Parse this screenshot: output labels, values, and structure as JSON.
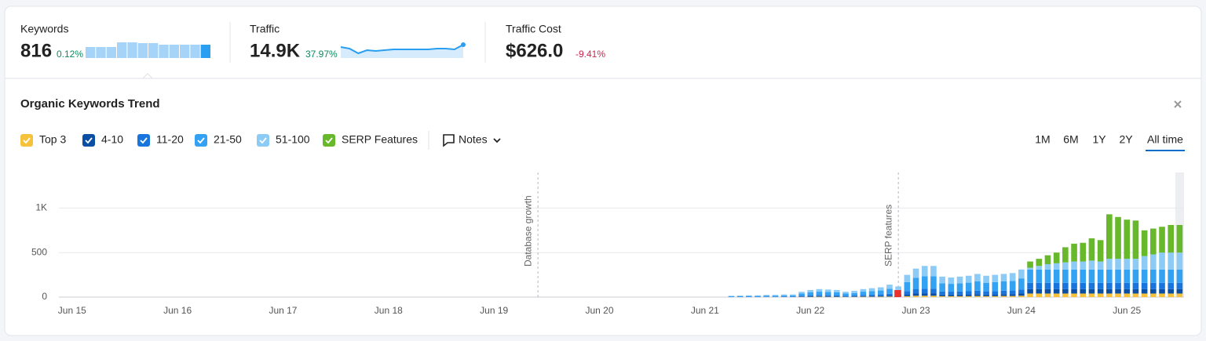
{
  "metrics": [
    {
      "label": "Keywords",
      "value": "816",
      "change": "0.12%",
      "change_color": "#0f8a5f",
      "sparkline": {
        "type": "bar",
        "values": [
          14,
          14,
          14,
          20,
          20,
          19,
          19,
          17,
          17,
          17,
          17,
          17
        ],
        "ylim": [
          0,
          20
        ],
        "color": "#a6d4f8",
        "highlight_color": "#2a9ef0"
      }
    },
    {
      "label": "Traffic",
      "value": "14.9K",
      "change": "37.97%",
      "change_color": "#0f8a5f",
      "sparkline": {
        "type": "line",
        "values": [
          14,
          12,
          6,
          10,
          9,
          10,
          11,
          11,
          11,
          11,
          11,
          12,
          12,
          11,
          17
        ],
        "ylim": [
          0,
          20
        ],
        "color": "#2a9ef0",
        "fill": "#d6ebfb"
      }
    },
    {
      "label": "Traffic Cost",
      "value": "$626.0",
      "change": "-9.41%",
      "change_color": "#d0224a"
    }
  ],
  "controls": {
    "notes": "Notes",
    "ranges": [
      "1M",
      "6M",
      "1Y",
      "2Y",
      "All time"
    ],
    "active_range": 4
  },
  "chart_data": {
    "type": "bar",
    "stacked": true,
    "title": "Organic Keywords Trend",
    "categories": [
      null,
      "Jun 15",
      null,
      null,
      null,
      null,
      null,
      null,
      null,
      null,
      null,
      null,
      null,
      "Jun 16",
      null,
      null,
      null,
      null,
      null,
      null,
      null,
      null,
      null,
      null,
      null,
      "Jun 17",
      null,
      null,
      null,
      null,
      null,
      null,
      null,
      null,
      null,
      null,
      null,
      "Jun 18",
      null,
      null,
      null,
      null,
      null,
      null,
      null,
      null,
      null,
      null,
      null,
      "Jun 19",
      null,
      null,
      null,
      null,
      null,
      null,
      null,
      null,
      null,
      null,
      null,
      "Jun 20",
      null,
      null,
      null,
      null,
      null,
      null,
      null,
      null,
      null,
      null,
      null,
      "Jun 21",
      null,
      null,
      null,
      null,
      null,
      null,
      null,
      null,
      null,
      null,
      null,
      "Jun 22",
      null,
      null,
      null,
      null,
      null,
      null,
      null,
      null,
      null,
      null,
      null,
      "Jun 23",
      null,
      null,
      null,
      null,
      null,
      null,
      null,
      null,
      null,
      null,
      null,
      "Jun 24",
      null,
      null,
      null,
      null,
      null,
      null,
      null,
      null,
      null,
      null,
      null,
      "Jun 25",
      null,
      null,
      null,
      null,
      null,
      null
    ],
    "series": [
      {
        "name": "Top 3",
        "color": "#f7c23b",
        "values": [
          0,
          0,
          0,
          0,
          0,
          0,
          0,
          0,
          0,
          0,
          0,
          0,
          0,
          0,
          0,
          0,
          0,
          0,
          0,
          0,
          0,
          0,
          0,
          0,
          0,
          0,
          0,
          0,
          0,
          0,
          0,
          0,
          0,
          0,
          0,
          0,
          0,
          0,
          0,
          0,
          0,
          0,
          0,
          0,
          0,
          0,
          0,
          0,
          0,
          0,
          0,
          0,
          0,
          0,
          0,
          0,
          0,
          0,
          0,
          0,
          0,
          0,
          0,
          0,
          0,
          0,
          0,
          0,
          0,
          0,
          0,
          0,
          0,
          0,
          0,
          0,
          0,
          0,
          0,
          0,
          0,
          0,
          0,
          0,
          2,
          3,
          4,
          3,
          3,
          2,
          3,
          4,
          4,
          5,
          6,
          5,
          10,
          15,
          15,
          15,
          10,
          10,
          10,
          10,
          12,
          10,
          10,
          12,
          12,
          15,
          40,
          40,
          40,
          40,
          40,
          40,
          40,
          40,
          40,
          40,
          40,
          40,
          40,
          40,
          40,
          40,
          40,
          40
        ]
      },
      {
        "name": "4-10",
        "color": "#0b4fa4",
        "values": [
          0,
          0,
          0,
          0,
          0,
          0,
          0,
          0,
          0,
          0,
          0,
          0,
          0,
          0,
          0,
          0,
          0,
          0,
          0,
          0,
          0,
          0,
          0,
          0,
          0,
          0,
          0,
          0,
          0,
          0,
          0,
          0,
          0,
          0,
          0,
          0,
          0,
          0,
          0,
          0,
          0,
          0,
          0,
          0,
          0,
          0,
          0,
          0,
          0,
          0,
          0,
          0,
          0,
          0,
          0,
          0,
          0,
          0,
          0,
          0,
          0,
          0,
          0,
          0,
          0,
          0,
          0,
          0,
          0,
          0,
          0,
          0,
          0,
          0,
          0,
          0,
          1,
          1,
          1,
          1,
          2,
          2,
          2,
          2,
          5,
          6,
          7,
          7,
          6,
          5,
          5,
          7,
          8,
          9,
          11,
          10,
          20,
          25,
          28,
          28,
          18,
          18,
          18,
          20,
          21,
          19,
          20,
          21,
          22,
          25,
          50,
          50,
          50,
          50,
          50,
          50,
          50,
          50,
          50,
          50,
          50,
          50,
          50,
          50,
          50,
          50,
          50,
          50
        ]
      },
      {
        "name": "11-20",
        "color": "#1875dd",
        "values": [
          0,
          0,
          0,
          0,
          0,
          0,
          0,
          0,
          0,
          0,
          0,
          0,
          0,
          0,
          0,
          0,
          0,
          0,
          0,
          0,
          0,
          0,
          0,
          0,
          0,
          0,
          0,
          0,
          0,
          0,
          0,
          0,
          0,
          0,
          0,
          0,
          0,
          0,
          0,
          0,
          0,
          0,
          0,
          0,
          0,
          0,
          0,
          0,
          0,
          0,
          0,
          0,
          0,
          0,
          0,
          0,
          0,
          0,
          0,
          0,
          0,
          0,
          0,
          0,
          0,
          0,
          0,
          0,
          0,
          0,
          0,
          0,
          0,
          0,
          0,
          0,
          2,
          3,
          3,
          3,
          4,
          4,
          5,
          5,
          9,
          12,
          14,
          13,
          12,
          9,
          10,
          14,
          15,
          16,
          21,
          18,
          38,
          48,
          52,
          52,
          35,
          33,
          35,
          36,
          39,
          36,
          38,
          39,
          40,
          46,
          70,
          70,
          70,
          70,
          70,
          70,
          70,
          70,
          70,
          70,
          70,
          70,
          70,
          70,
          70,
          70,
          70,
          70
        ]
      },
      {
        "name": "21-50",
        "color": "#33a2f3",
        "values": [
          0,
          0,
          0,
          0,
          0,
          0,
          0,
          0,
          0,
          0,
          0,
          0,
          0,
          0,
          0,
          0,
          0,
          0,
          0,
          0,
          0,
          0,
          0,
          0,
          0,
          0,
          0,
          0,
          0,
          0,
          0,
          0,
          0,
          0,
          0,
          0,
          0,
          0,
          0,
          0,
          0,
          0,
          0,
          0,
          0,
          0,
          0,
          0,
          0,
          0,
          0,
          0,
          0,
          0,
          0,
          0,
          0,
          0,
          0,
          0,
          0,
          0,
          0,
          0,
          0,
          0,
          0,
          0,
          0,
          0,
          0,
          0,
          0,
          0,
          0,
          0,
          6,
          7,
          8,
          8,
          10,
          10,
          12,
          12,
          24,
          32,
          36,
          34,
          32,
          24,
          28,
          36,
          40,
          44,
          56,
          48,
          100,
          128,
          140,
          140,
          92,
          88,
          92,
          96,
          104,
          96,
          100,
          104,
          108,
          124,
          150,
          150,
          150,
          150,
          150,
          150,
          150,
          150,
          150,
          150,
          150,
          150,
          150,
          150,
          150,
          150,
          150,
          150
        ]
      },
      {
        "name": "51-100",
        "color": "#8ccbf6",
        "values": [
          0,
          0,
          0,
          0,
          0,
          0,
          0,
          0,
          0,
          0,
          0,
          0,
          0,
          0,
          0,
          0,
          0,
          0,
          0,
          0,
          0,
          0,
          0,
          0,
          0,
          0,
          0,
          0,
          0,
          0,
          0,
          0,
          0,
          0,
          0,
          0,
          0,
          0,
          0,
          0,
          0,
          0,
          0,
          0,
          0,
          0,
          0,
          0,
          0,
          0,
          0,
          0,
          0,
          0,
          0,
          0,
          0,
          0,
          0,
          0,
          0,
          0,
          0,
          0,
          0,
          0,
          0,
          0,
          0,
          0,
          0,
          0,
          0,
          0,
          0,
          0,
          6,
          7,
          8,
          8,
          9,
          9,
          11,
          11,
          20,
          27,
          29,
          28,
          27,
          20,
          24,
          29,
          33,
          36,
          46,
          39,
          82,
          104,
          115,
          115,
          75,
          71,
          75,
          78,
          84,
          79,
          82,
          84,
          88,
          100,
          20,
          40,
          60,
          70,
          80,
          90,
          90,
          100,
          90,
          120,
          120,
          120,
          120,
          150,
          170,
          190,
          190,
          190
        ]
      },
      {
        "name": "SERP Features",
        "color": "#67b82a",
        "values": [
          0,
          0,
          0,
          0,
          0,
          0,
          0,
          0,
          0,
          0,
          0,
          0,
          0,
          0,
          0,
          0,
          0,
          0,
          0,
          0,
          0,
          0,
          0,
          0,
          0,
          0,
          0,
          0,
          0,
          0,
          0,
          0,
          0,
          0,
          0,
          0,
          0,
          0,
          0,
          0,
          0,
          0,
          0,
          0,
          0,
          0,
          0,
          0,
          0,
          0,
          0,
          0,
          0,
          0,
          0,
          0,
          0,
          0,
          0,
          0,
          0,
          0,
          0,
          0,
          0,
          0,
          0,
          0,
          0,
          0,
          0,
          0,
          0,
          0,
          0,
          0,
          0,
          0,
          0,
          0,
          0,
          0,
          0,
          0,
          0,
          0,
          0,
          0,
          0,
          0,
          0,
          0,
          0,
          0,
          0,
          0,
          0,
          0,
          0,
          0,
          0,
          0,
          0,
          0,
          0,
          0,
          0,
          0,
          0,
          0,
          70,
          80,
          100,
          120,
          170,
          200,
          210,
          250,
          240,
          500,
          470,
          440,
          430,
          290,
          290,
          290,
          310,
          310
        ]
      }
    ],
    "ylim": [
      0,
      1400
    ],
    "yticks": [
      0,
      500,
      {
        "value": 1000,
        "label": "1K"
      }
    ],
    "grid": true,
    "annotations": [
      {
        "text": "Database growth",
        "index": 54
      },
      {
        "text": "SERP features",
        "index": 95
      }
    ]
  }
}
